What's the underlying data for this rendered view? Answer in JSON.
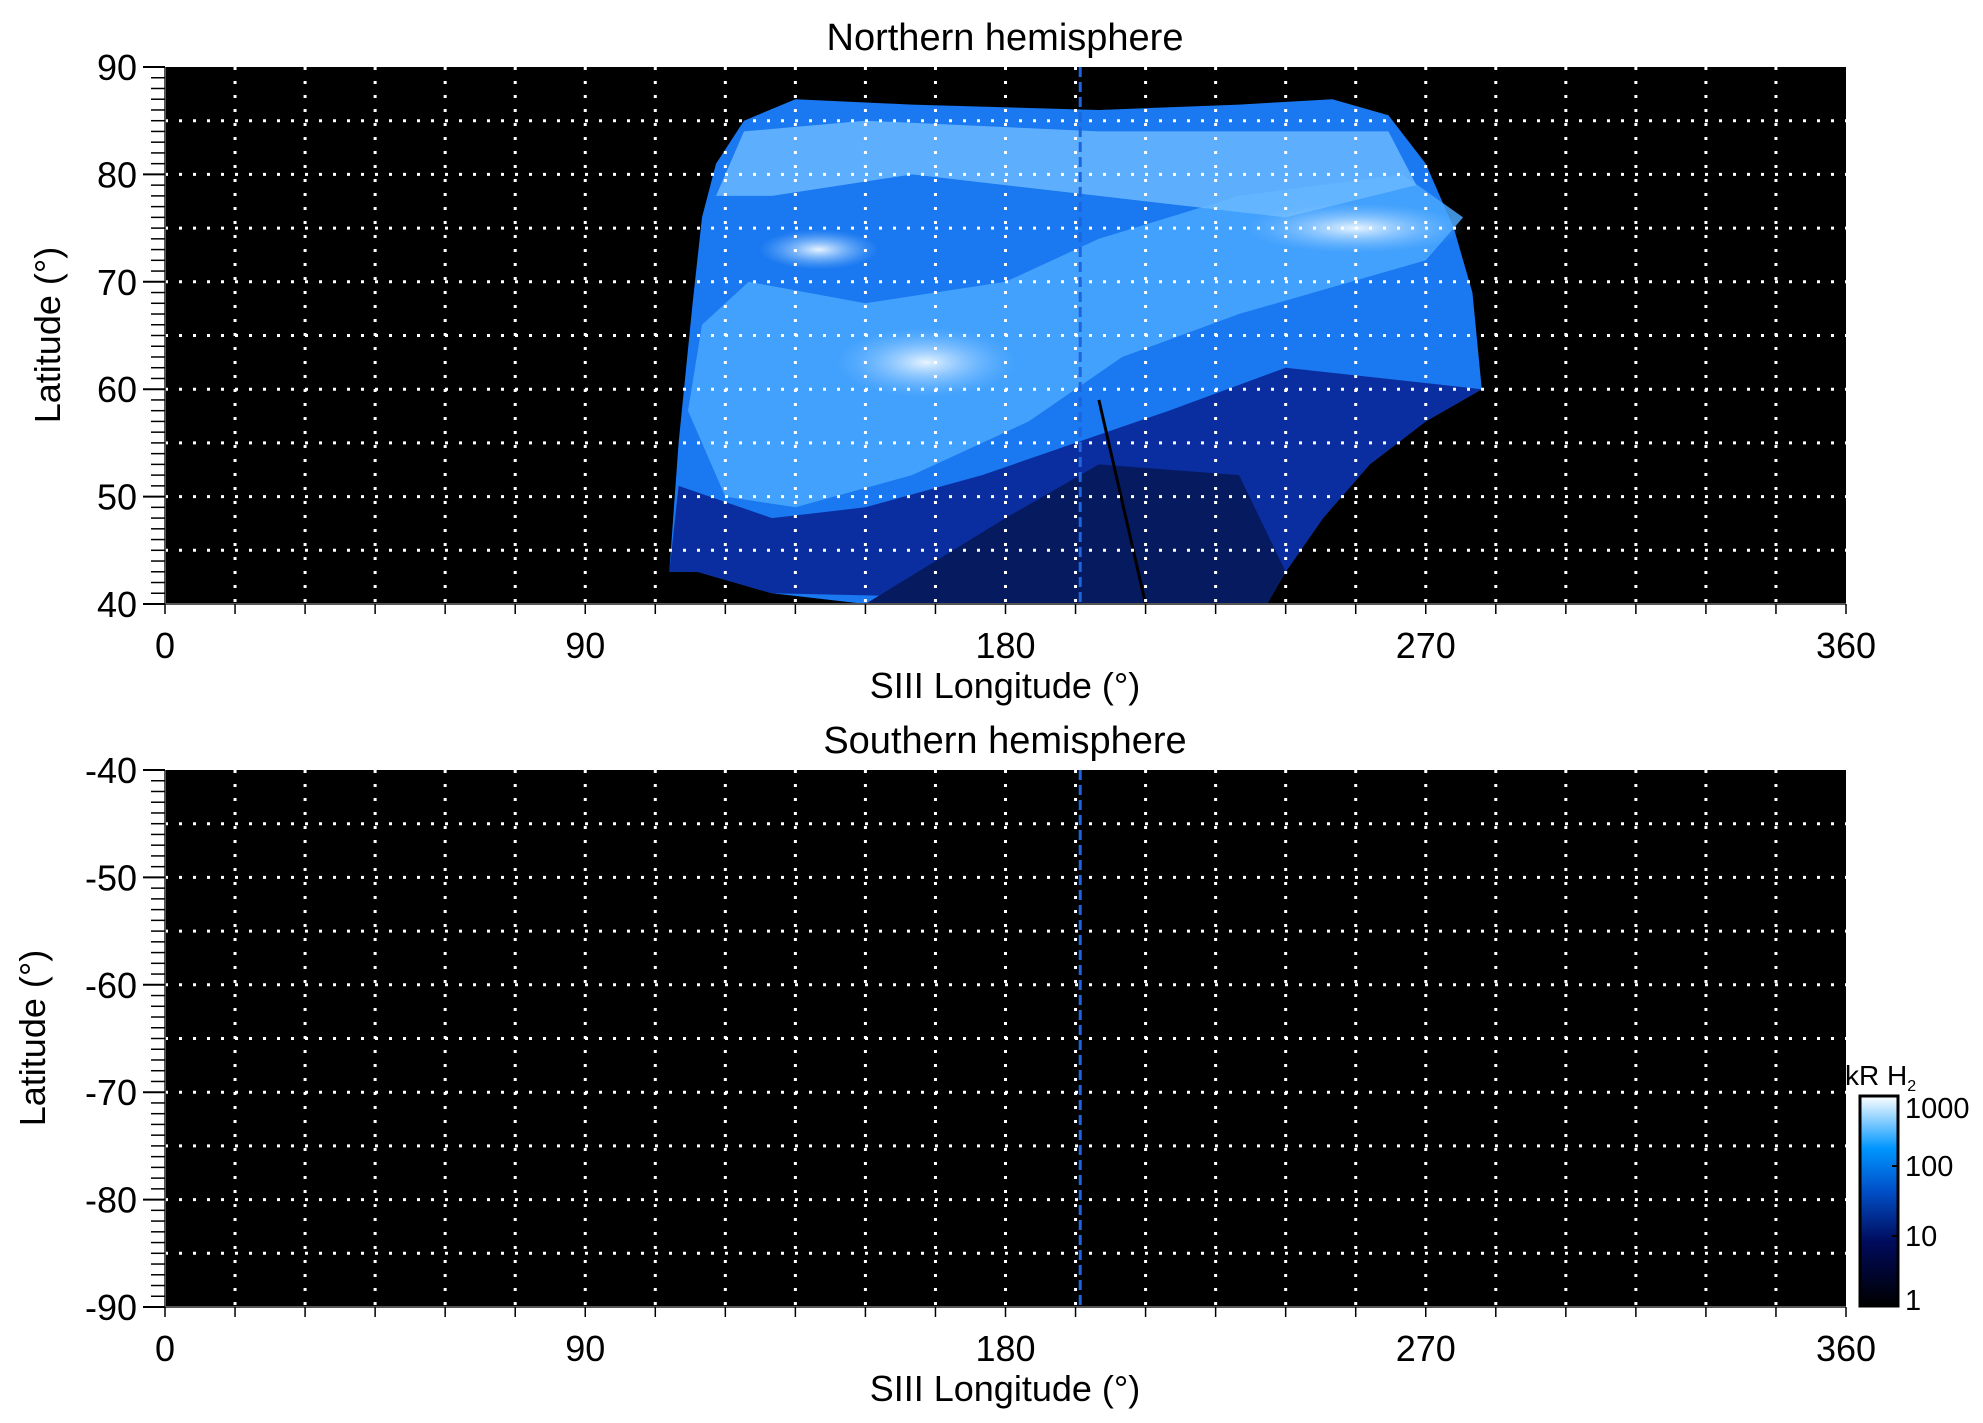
{
  "chart_data": [
    {
      "type": "heatmap",
      "title": "Northern hemisphere",
      "xlabel": "SIII Longitude (°)",
      "ylabel": "Latitude (°)",
      "xlim": [
        0,
        360
      ],
      "ylim": [
        40,
        90
      ],
      "xticks": [
        "0",
        "90",
        "180",
        "270",
        "360"
      ],
      "yticks": [
        "40",
        "50",
        "60",
        "70",
        "80",
        "90"
      ],
      "grid": true,
      "marker_longitude": 196,
      "description_region": {
        "lon_range": [
          108,
          282
        ],
        "lat_range": [
          40,
          87
        ]
      }
    },
    {
      "type": "heatmap",
      "title": "Southern hemisphere",
      "xlabel": "SIII Longitude (°)",
      "ylabel": "Latitude (°)",
      "xlim": [
        0,
        360
      ],
      "ylim": [
        -90,
        -40
      ],
      "xticks": [
        "0",
        "90",
        "180",
        "270",
        "360"
      ],
      "yticks": [
        "-90",
        "-80",
        "-70",
        "-60",
        "-50",
        "-40"
      ],
      "grid": true,
      "marker_longitude": 196
    }
  ],
  "colorbar": {
    "label": "kR H",
    "label_subscript": "2",
    "scale": "log",
    "range": [
      1,
      1000
    ],
    "ticks": [
      "1",
      "10",
      "100",
      "1000"
    ],
    "colors": [
      "#000000",
      "#000a5a",
      "#0050c8",
      "#0096ff",
      "#ffffff"
    ]
  }
}
